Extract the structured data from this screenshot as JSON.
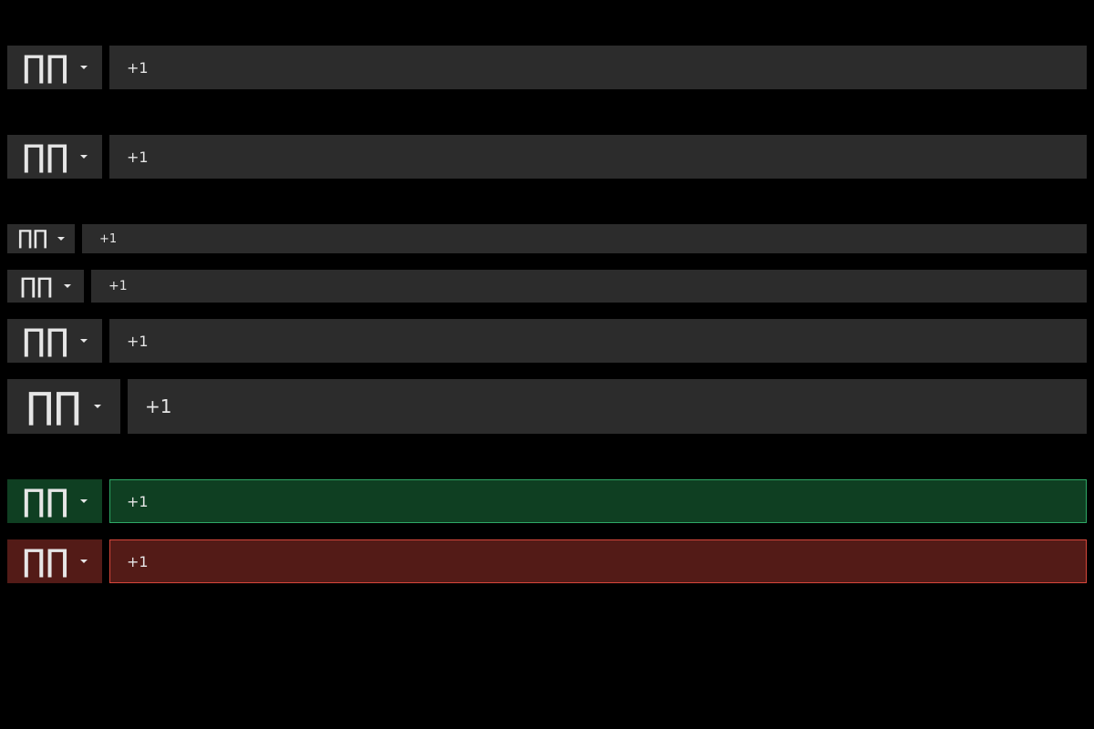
{
  "rows": [
    {
      "flag": "∏∏",
      "value": "+1",
      "variant": "default"
    },
    {
      "flag": "∏∏",
      "value": "+1",
      "variant": "default"
    },
    {
      "flag": "∏∏",
      "value": "+1",
      "variant": "small"
    },
    {
      "flag": "∏∏",
      "value": "+1",
      "variant": "small-medium"
    },
    {
      "flag": "∏∏",
      "value": "+1",
      "variant": "default"
    },
    {
      "flag": "∏∏",
      "value": "+1",
      "variant": "large"
    },
    {
      "flag": "∏∏",
      "value": "+1",
      "variant": "valid"
    },
    {
      "flag": "∏∏",
      "value": "+1",
      "variant": "invalid"
    }
  ],
  "colors": {
    "background": "#000000",
    "field": "#2c2c2c",
    "text": "#e6e6e6",
    "valid_fill": "#0f3f22",
    "valid_border": "#2ea866",
    "invalid_fill": "#531b17",
    "invalid_border": "#d8473b"
  },
  "icons": {
    "dropdown": "chevron-down-icon"
  }
}
